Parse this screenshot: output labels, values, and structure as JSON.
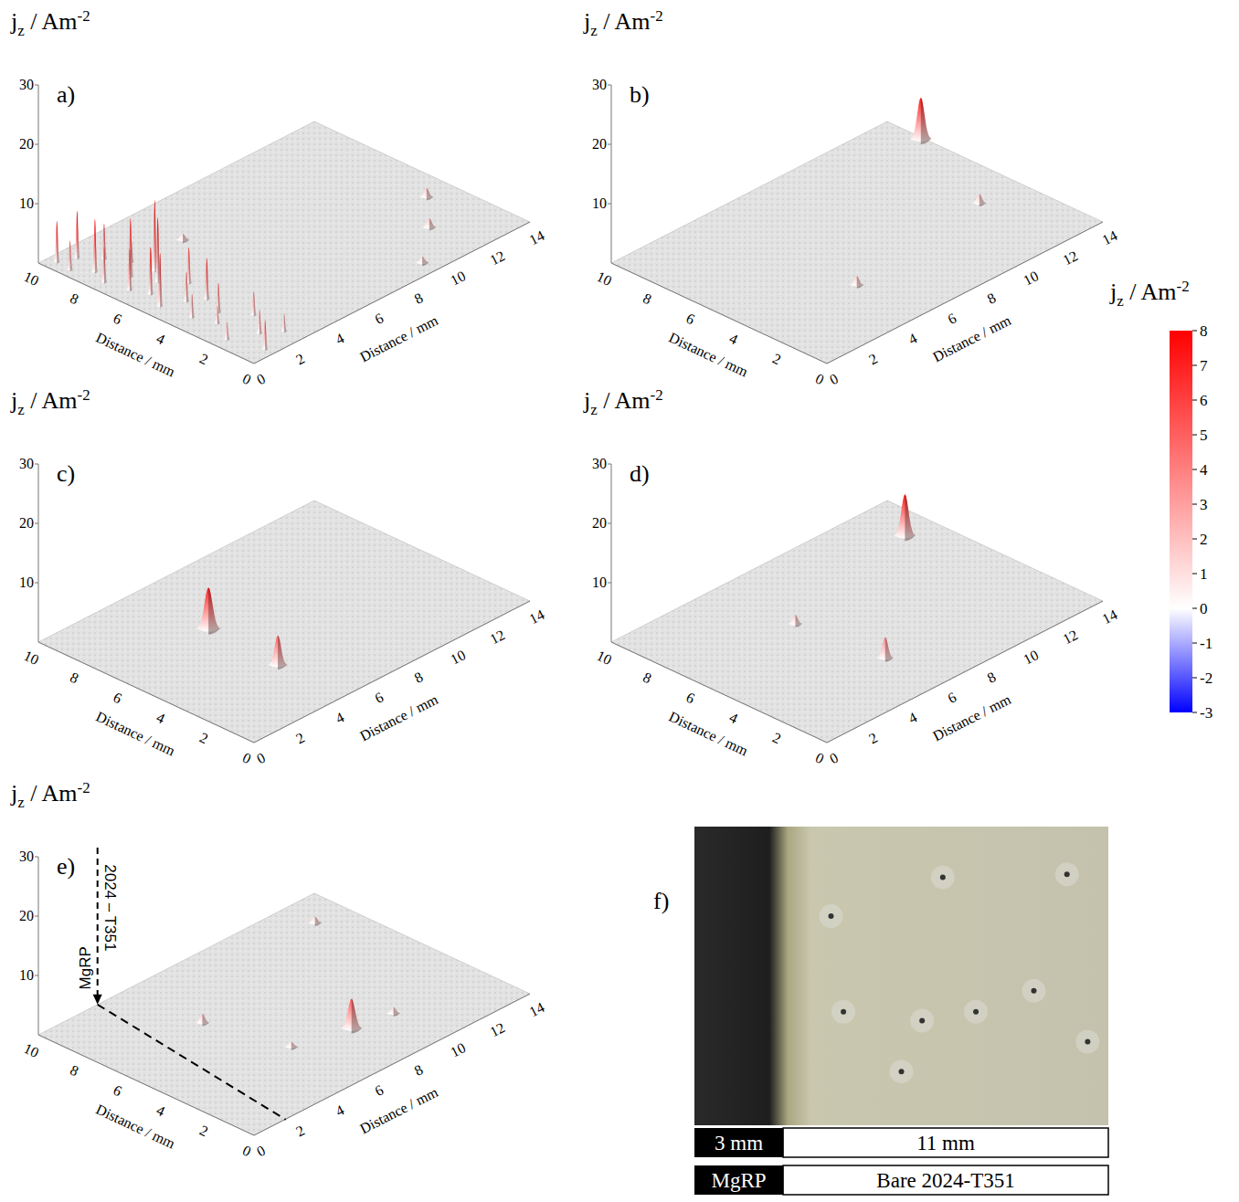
{
  "chart_data": [
    {
      "type": "surface3d",
      "panel": "a)",
      "z_label": {
        "symbol": "j",
        "subscript": "z",
        "unit": " / Am",
        "superscript": "-2"
      },
      "x_label": "Distance / mm",
      "y_label": "Distance / mm",
      "xlim": [
        0,
        10
      ],
      "xticks": [
        0,
        2,
        4,
        6,
        8,
        10
      ],
      "ylim": [
        0,
        14
      ],
      "yticks": [
        0,
        2,
        4,
        6,
        8,
        10,
        12,
        14
      ],
      "zlim": [
        0,
        30
      ],
      "zticks": [
        10,
        20,
        30
      ],
      "peaks": [
        {
          "x": 9.6,
          "y": 0.5,
          "z": 7,
          "radius": 0.12
        },
        {
          "x": 9.3,
          "y": 1.2,
          "z": 8,
          "radius": 0.12
        },
        {
          "x": 8.9,
          "y": 0.4,
          "z": 5,
          "radius": 0.12
        },
        {
          "x": 8.6,
          "y": 1.8,
          "z": 6,
          "radius": 0.12
        },
        {
          "x": 8.2,
          "y": 0.9,
          "z": 9,
          "radius": 0.12
        },
        {
          "x": 7.8,
          "y": 2.3,
          "z": 4,
          "radius": 0.12
        },
        {
          "x": 7.5,
          "y": 0.6,
          "z": 6,
          "radius": 0.12
        },
        {
          "x": 7.1,
          "y": 1.5,
          "z": 10,
          "radius": 0.12
        },
        {
          "x": 6.8,
          "y": 2.4,
          "z": 12,
          "radius": 0.12
        },
        {
          "x": 6.5,
          "y": 0.8,
          "z": 7,
          "radius": 0.12
        },
        {
          "x": 6.2,
          "y": 1.9,
          "z": 11,
          "radius": 0.12
        },
        {
          "x": 5.8,
          "y": 1.1,
          "z": 8,
          "radius": 0.12
        },
        {
          "x": 5.4,
          "y": 2.6,
          "z": 6,
          "radius": 0.12
        },
        {
          "x": 5.0,
          "y": 0.7,
          "z": 9,
          "radius": 0.12
        },
        {
          "x": 4.6,
          "y": 1.6,
          "z": 5,
          "radius": 0.12
        },
        {
          "x": 4.2,
          "y": 2.2,
          "z": 7,
          "radius": 0.12
        },
        {
          "x": 3.7,
          "y": 0.9,
          "z": 4,
          "radius": 0.12
        },
        {
          "x": 3.3,
          "y": 1.8,
          "z": 5,
          "radius": 0.12
        },
        {
          "x": 2.8,
          "y": 1.2,
          "z": 3,
          "radius": 0.12
        },
        {
          "x": 2.3,
          "y": 2.5,
          "z": 4,
          "radius": 0.12
        },
        {
          "x": 1.8,
          "y": 0.6,
          "z": 3,
          "radius": 0.12
        },
        {
          "x": 1.3,
          "y": 1.7,
          "z": 4,
          "radius": 0.12
        },
        {
          "x": 0.8,
          "y": 2.4,
          "z": 3,
          "radius": 0.12
        },
        {
          "x": 0.4,
          "y": 1.0,
          "z": 5,
          "radius": 0.12
        },
        {
          "x": 2.2,
          "y": 11.3,
          "z": 1.5,
          "radius": 0.3
        },
        {
          "x": 3.7,
          "y": 12.8,
          "z": 1.5,
          "radius": 0.3
        },
        {
          "x": 0.7,
          "y": 9.3,
          "z": 1,
          "radius": 0.3
        },
        {
          "x": 7.6,
          "y": 4.7,
          "z": 1,
          "radius": 0.3
        }
      ]
    },
    {
      "type": "surface3d",
      "panel": "b)",
      "z_label": {
        "symbol": "j",
        "subscript": "z",
        "unit": " / Am",
        "superscript": "-2"
      },
      "x_label": "Distance / mm",
      "y_label": "Distance / mm",
      "xlim": [
        0,
        10
      ],
      "xticks": [
        0,
        2,
        4,
        6,
        8,
        10
      ],
      "ylim": [
        0,
        14
      ],
      "yticks": [
        0,
        2,
        4,
        6,
        8,
        10,
        12,
        14
      ],
      "zlim": [
        0,
        30
      ],
      "zticks": [
        10,
        20,
        30
      ],
      "peaks": [
        {
          "x": 8.35,
          "y": 13.9,
          "z": 7,
          "radius": 0.45
        },
        {
          "x": 3.9,
          "y": 12.0,
          "z": 1.5,
          "radius": 0.3
        },
        {
          "x": 3.0,
          "y": 4.8,
          "z": 1.5,
          "radius": 0.3
        }
      ]
    },
    {
      "type": "surface3d",
      "panel": "c)",
      "z_label": {
        "symbol": "j",
        "subscript": "z",
        "unit": " / Am",
        "superscript": "-2"
      },
      "x_label": "Distance / mm",
      "y_label": "Distance / mm",
      "xlim": [
        0,
        10
      ],
      "xticks": [
        0,
        2,
        4,
        6,
        8,
        10
      ],
      "ylim": [
        0,
        14
      ],
      "yticks": [
        0,
        2,
        4,
        6,
        8,
        10,
        12,
        14
      ],
      "zlim": [
        0,
        30
      ],
      "zticks": [
        10,
        20,
        30
      ],
      "peaks": [
        {
          "x": 6.5,
          "y": 4.8,
          "z": 7,
          "radius": 0.5
        },
        {
          "x": 3.1,
          "y": 4.6,
          "z": 5,
          "radius": 0.4
        }
      ]
    },
    {
      "type": "surface3d",
      "panel": "d)",
      "z_label": {
        "symbol": "j",
        "subscript": "z",
        "unit": " / Am",
        "superscript": "-2"
      },
      "x_label": "Distance / mm",
      "y_label": "Distance / mm",
      "xlim": [
        0,
        10
      ],
      "xticks": [
        0,
        2,
        4,
        6,
        8,
        10
      ],
      "ylim": [
        0,
        14
      ],
      "yticks": [
        0,
        2,
        4,
        6,
        8,
        10,
        12,
        14
      ],
      "zlim": [
        0,
        30
      ],
      "zticks": [
        10,
        20,
        30
      ],
      "peaks": [
        {
          "x": 7.9,
          "y": 12.6,
          "z": 7,
          "radius": 0.45
        },
        {
          "x": 2.6,
          "y": 5.8,
          "z": 3.5,
          "radius": 0.35
        },
        {
          "x": 6.4,
          "y": 5.4,
          "z": 1.5,
          "radius": 0.3
        }
      ]
    },
    {
      "type": "surface3d",
      "panel": "e)",
      "z_label": {
        "symbol": "j",
        "subscript": "z",
        "unit": " / Am",
        "superscript": "-2"
      },
      "x_label": "Distance / mm",
      "y_label": "Distance / mm",
      "xlim": [
        0,
        10
      ],
      "xticks": [
        0,
        2,
        4,
        6,
        8,
        10
      ],
      "ylim": [
        0,
        14
      ],
      "yticks": [
        0,
        2,
        4,
        6,
        8,
        10,
        12,
        14
      ],
      "zlim": [
        0,
        30
      ],
      "zticks": [
        10,
        20,
        30
      ],
      "peaks": [
        {
          "x": 2.7,
          "y": 7.9,
          "z": 5,
          "radius": 0.45
        },
        {
          "x": 6.6,
          "y": 4.6,
          "z": 1.5,
          "radius": 0.3
        },
        {
          "x": 8.6,
          "y": 12.5,
          "z": 1,
          "radius": 0.3
        },
        {
          "x": 3.3,
          "y": 5.5,
          "z": 0.8,
          "radius": 0.3
        },
        {
          "x": 2.4,
          "y": 9.7,
          "z": 1,
          "radius": 0.3
        }
      ],
      "boundary": {
        "y": 3,
        "labels": [
          "MgRP",
          "2024 – T351"
        ]
      }
    }
  ],
  "colorbar": {
    "label": {
      "symbol": "j",
      "subscript": "z",
      "unit": " / Am",
      "superscript": "-2"
    },
    "range": [
      -3,
      8
    ],
    "ticks": [
      8,
      7,
      6,
      5,
      4,
      3,
      2,
      1,
      0,
      -1,
      -2,
      -3
    ],
    "colors": [
      "#0000ff",
      "#ffffff",
      "#ff0000"
    ]
  },
  "photo": {
    "panel": "f)",
    "regions": [
      {
        "width": 3,
        "width_label": "3 mm",
        "name": "MgRP"
      },
      {
        "width": 11,
        "width_label": "11 mm",
        "name": "Bare 2024-T351"
      }
    ]
  }
}
